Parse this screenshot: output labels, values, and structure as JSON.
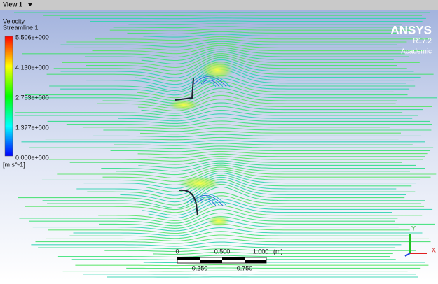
{
  "view": {
    "label": "View 1"
  },
  "legend": {
    "title": "Velocity",
    "subtitle": "Streamline 1",
    "labels": [
      "5.506e+000",
      "4.130e+000",
      "2.753e+000",
      "1.377e+000",
      "0.000e+000"
    ],
    "unit": "[m s^-1]"
  },
  "logo": {
    "name": "ANSYS",
    "version": "R17.2",
    "edition": "Academic"
  },
  "scale_bar": {
    "labels": [
      "0",
      "0.500",
      "1.000"
    ],
    "unit": "(m)",
    "sub_labels": [
      "0.250",
      "0.750"
    ]
  },
  "triad": {
    "y": "Y",
    "x": "X"
  }
}
